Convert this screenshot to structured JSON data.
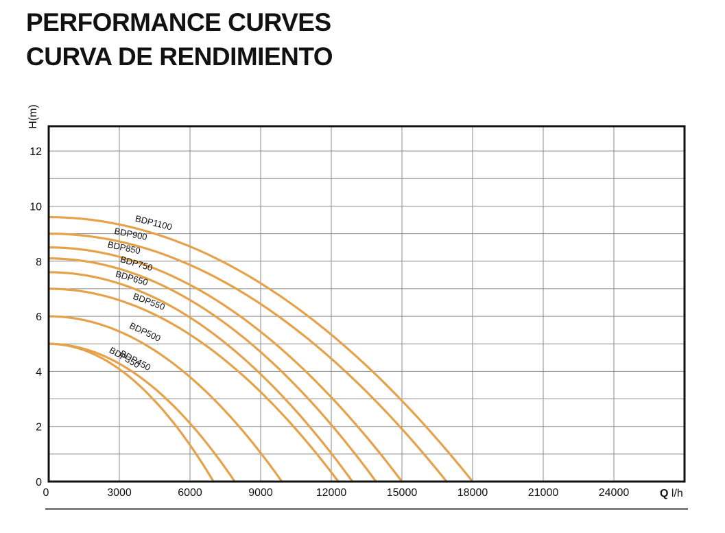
{
  "header": {
    "title": "PERFORMANCE CURVES",
    "subtitle": "CURVA DE RENDIMIENTO"
  },
  "colors": {
    "curve": "#E5A24A",
    "grid": "#8a8a8a",
    "frame": "#111111"
  },
  "chart_data": {
    "type": "line",
    "title": "PERFORMANCE CURVES",
    "subtitle": "CURVA DE RENDIMIENTO",
    "xlabel": "Q l/h",
    "ylabel": "H(m)",
    "xlim": [
      0,
      27000
    ],
    "ylim": [
      0,
      12.9
    ],
    "x_ticks": [
      0,
      3000,
      6000,
      9000,
      12000,
      15000,
      18000,
      21000,
      24000
    ],
    "y_ticks": [
      0,
      2,
      4,
      6,
      8,
      10,
      12
    ],
    "grid": true,
    "series": [
      {
        "name": "BDP1100",
        "h0": 9.6,
        "qmax": 18000
      },
      {
        "name": "BDP900",
        "h0": 9.0,
        "qmax": 16900
      },
      {
        "name": "BDP850",
        "h0": 8.5,
        "qmax": 15000
      },
      {
        "name": "BDP750",
        "h0": 8.1,
        "qmax": 13900
      },
      {
        "name": "BDP650",
        "h0": 7.6,
        "qmax": 12900
      },
      {
        "name": "BDP550",
        "h0": 7.0,
        "qmax": 12300
      },
      {
        "name": "BDP500",
        "h0": 6.0,
        "qmax": 9900
      },
      {
        "name": "BDP450",
        "h0": 5.0,
        "qmax": 7900
      },
      {
        "name": "BDP350",
        "h0": 5.0,
        "qmax": 7000
      }
    ]
  }
}
